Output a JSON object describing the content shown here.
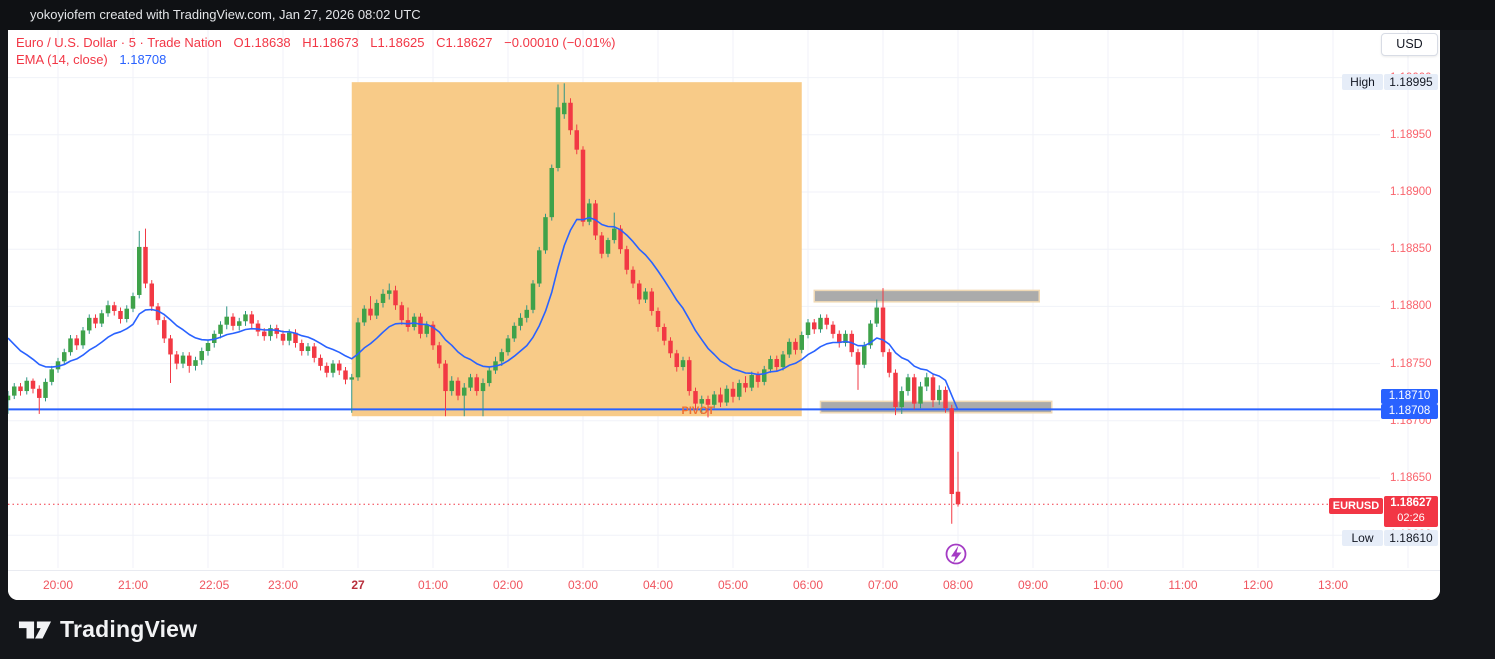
{
  "window": {
    "attribution": "yokoyiofem created with TradingView.com, Jan 27, 2026 08:02 UTC",
    "brand": "TradingView"
  },
  "legend": {
    "symbol_title": "Euro / U.S. Dollar · 5 · Trade Nation",
    "open": "O1.18638",
    "high": "H1.18673",
    "low": "L1.18625",
    "close": "C1.18627",
    "change": "−0.00010 (−0.01%)",
    "indicator_label": "EMA (14, close)",
    "indicator_value": "1.18708"
  },
  "price_scale": {
    "currency_button": "USD",
    "high_label": "High",
    "high_value": "1.18995",
    "low_label": "Low",
    "low_value": "1.18610",
    "symbol_label": "EURUSD",
    "last_price": "1.18627",
    "countdown": "02:26",
    "pivot_value": "1.18710",
    "ema_value": "1.18708",
    "ticks": [
      "1.19000",
      "1.18950",
      "1.18900",
      "1.18850",
      "1.18800",
      "1.18750",
      "1.18700",
      "1.18650",
      "1.18600"
    ]
  },
  "time_axis": {
    "labels": [
      {
        "text": "20:00",
        "time": "20:00"
      },
      {
        "text": "21:00",
        "time": "21:00"
      },
      {
        "text": "22:05",
        "time": "22:05"
      },
      {
        "text": "23:00",
        "time": "23:00"
      },
      {
        "text": "27",
        "time": "00:00",
        "day": true
      },
      {
        "text": "01:00",
        "time": "01:00"
      },
      {
        "text": "02:00",
        "time": "02:00"
      },
      {
        "text": "03:00",
        "time": "03:00"
      },
      {
        "text": "04:00",
        "time": "04:00"
      },
      {
        "text": "05:00",
        "time": "05:00"
      },
      {
        "text": "06:00",
        "time": "06:00"
      },
      {
        "text": "07:00",
        "time": "07:00"
      },
      {
        "text": "08:00",
        "time": "08:00"
      },
      {
        "text": "09:00",
        "time": "09:00"
      },
      {
        "text": "10:00",
        "time": "10:00"
      },
      {
        "text": "11:00",
        "time": "11:00"
      },
      {
        "text": "12:00",
        "time": "12:00"
      },
      {
        "text": "13:00",
        "time": "13:00"
      }
    ]
  },
  "annotations": {
    "pivot_text": "PIVOT"
  },
  "colors": {
    "up_body": "#3fa24a",
    "up_wick": "#2f9484",
    "down_body": "#f23944",
    "down_wick": "#f23944",
    "ema_line": "#2962ff",
    "pivot_line": "#2962ff",
    "last_price_line": "#f23645",
    "highlight_box": "#f8cb88",
    "zone_fill": "#ababab",
    "zone_border": "#f0d9b5",
    "grid": "#f0f2f8",
    "pivot_text": "#ee6f30",
    "event_icon": "#a43bc4"
  },
  "chart_data": {
    "type": "candlestick",
    "symbol": "EURUSD",
    "interval": "5m",
    "price_base": 1.18,
    "price_unit": 1e-05,
    "session_high": 1.18995,
    "session_low": 1.1861,
    "last_price": 1.18627,
    "pivot_level": 1.1871,
    "ema": {
      "length": 14,
      "source": "close",
      "seed_units": 780,
      "last_value": 1.18708
    },
    "highlight_box": {
      "time_start": "23:55",
      "time_end": "05:55",
      "price_top": 1.18996,
      "price_bottom": 1.18704
    },
    "zones": [
      {
        "time_start": "06:05",
        "time_end": "09:05",
        "price_top": 1.18814,
        "price_bottom": 1.18804
      },
      {
        "time_start": "06:10",
        "time_end": "09:15",
        "price_top": 1.18717,
        "price_bottom": 1.18707
      }
    ],
    "event_marker": {
      "time": "08:00",
      "type": "economic-event"
    },
    "grid_hours": [
      "20:00",
      "21:00",
      "22:00",
      "23:00",
      "00:00",
      "01:00",
      "02:00",
      "03:00",
      "04:00",
      "05:00",
      "06:00",
      "07:00",
      "08:00",
      "09:00",
      "10:00",
      "11:00",
      "12:00",
      "13:00",
      "14:00"
    ],
    "candles": [
      [
        "19:20",
        718,
        726,
        706,
        722
      ],
      [
        "19:25",
        722,
        733,
        719,
        730
      ],
      [
        "19:30",
        730,
        733,
        722,
        726
      ],
      [
        "19:35",
        726,
        738,
        723,
        735
      ],
      [
        "19:40",
        735,
        737,
        724,
        728
      ],
      [
        "19:45",
        728,
        731,
        706,
        720
      ],
      [
        "19:50",
        720,
        737,
        717,
        734
      ],
      [
        "19:55",
        734,
        748,
        731,
        745
      ],
      [
        "20:00",
        745,
        755,
        742,
        752
      ],
      [
        "20:05",
        752,
        763,
        749,
        760
      ],
      [
        "20:10",
        760,
        775,
        757,
        772
      ],
      [
        "20:15",
        772,
        775,
        762,
        766
      ],
      [
        "20:20",
        766,
        782,
        763,
        779
      ],
      [
        "20:25",
        779,
        793,
        776,
        790
      ],
      [
        "20:30",
        790,
        793,
        781,
        785
      ],
      [
        "20:35",
        785,
        797,
        782,
        794
      ],
      [
        "20:40",
        794,
        805,
        791,
        801
      ],
      [
        "20:45",
        801,
        804,
        792,
        796
      ],
      [
        "20:50",
        796,
        799,
        785,
        789
      ],
      [
        "20:55",
        789,
        801,
        786,
        798
      ],
      [
        "21:00",
        798,
        812,
        795,
        809
      ],
      [
        "21:05",
        810,
        866,
        807,
        852
      ],
      [
        "21:10",
        852,
        868,
        816,
        820
      ],
      [
        "21:15",
        820,
        823,
        796,
        800
      ],
      [
        "21:20",
        800,
        803,
        784,
        788
      ],
      [
        "21:25",
        788,
        791,
        768,
        772
      ],
      [
        "21:30",
        772,
        775,
        733,
        758
      ],
      [
        "21:35",
        758,
        761,
        745,
        750
      ],
      [
        "21:40",
        750,
        760,
        746,
        757
      ],
      [
        "21:45",
        757,
        760,
        742,
        748
      ],
      [
        "21:50",
        748,
        756,
        744,
        753
      ],
      [
        "21:55",
        753,
        764,
        749,
        761
      ],
      [
        "22:00",
        761,
        771,
        757,
        768
      ],
      [
        "22:05",
        768,
        779,
        764,
        776
      ],
      [
        "22:10",
        776,
        787,
        772,
        784
      ],
      [
        "22:15",
        784,
        800,
        780,
        791
      ],
      [
        "22:20",
        791,
        794,
        779,
        783
      ],
      [
        "22:25",
        783,
        790,
        779,
        787
      ],
      [
        "22:30",
        787,
        796,
        783,
        793
      ],
      [
        "22:35",
        793,
        796,
        781,
        785
      ],
      [
        "22:40",
        785,
        788,
        774,
        778
      ],
      [
        "22:45",
        778,
        781,
        770,
        774
      ],
      [
        "22:50",
        774,
        784,
        770,
        781
      ],
      [
        "22:55",
        781,
        784,
        772,
        776
      ],
      [
        "23:00",
        776,
        779,
        766,
        770
      ],
      [
        "23:05",
        770,
        780,
        766,
        777
      ],
      [
        "23:10",
        777,
        780,
        764,
        768
      ],
      [
        "23:15",
        768,
        771,
        757,
        761
      ],
      [
        "23:20",
        761,
        768,
        757,
        765
      ],
      [
        "23:25",
        765,
        768,
        751,
        755
      ],
      [
        "23:30",
        755,
        758,
        744,
        748
      ],
      [
        "23:35",
        748,
        751,
        738,
        742
      ],
      [
        "23:40",
        742,
        753,
        738,
        750
      ],
      [
        "23:45",
        750,
        753,
        740,
        744
      ],
      [
        "23:50",
        744,
        747,
        732,
        736
      ],
      [
        "23:55",
        736,
        741,
        707,
        738
      ],
      [
        "00:00",
        738,
        790,
        735,
        786
      ],
      [
        "00:05",
        786,
        801,
        783,
        798
      ],
      [
        "00:10",
        798,
        809,
        788,
        792
      ],
      [
        "00:15",
        792,
        806,
        789,
        803
      ],
      [
        "00:20",
        803,
        815,
        799,
        811
      ],
      [
        "00:25",
        811,
        820,
        806,
        814
      ],
      [
        "00:30",
        814,
        818,
        797,
        801
      ],
      [
        "00:35",
        801,
        804,
        784,
        788
      ],
      [
        "00:40",
        788,
        799,
        778,
        782
      ],
      [
        "00:45",
        782,
        794,
        779,
        791
      ],
      [
        "00:50",
        791,
        794,
        772,
        776
      ],
      [
        "00:55",
        776,
        787,
        773,
        784
      ],
      [
        "01:00",
        784,
        787,
        762,
        766
      ],
      [
        "01:05",
        766,
        769,
        746,
        750
      ],
      [
        "01:10",
        750,
        753,
        704,
        726
      ],
      [
        "01:15",
        726,
        739,
        722,
        735
      ],
      [
        "01:20",
        735,
        738,
        718,
        722
      ],
      [
        "01:25",
        722,
        733,
        704,
        729
      ],
      [
        "01:30",
        729,
        741,
        726,
        738
      ],
      [
        "01:35",
        738,
        741,
        722,
        726
      ],
      [
        "01:40",
        726,
        737,
        704,
        733
      ],
      [
        "01:45",
        733,
        747,
        730,
        744
      ],
      [
        "01:50",
        744,
        756,
        741,
        752
      ],
      [
        "01:55",
        752,
        763,
        748,
        760
      ],
      [
        "02:00",
        760,
        775,
        757,
        772
      ],
      [
        "02:05",
        772,
        786,
        769,
        783
      ],
      [
        "02:10",
        783,
        794,
        779,
        790
      ],
      [
        "02:15",
        790,
        801,
        786,
        797
      ],
      [
        "02:20",
        797,
        823,
        794,
        820
      ],
      [
        "02:25",
        820,
        852,
        817,
        849
      ],
      [
        "02:30",
        849,
        881,
        846,
        878
      ],
      [
        "02:35",
        878,
        924,
        875,
        921
      ],
      [
        "02:40",
        921,
        994,
        918,
        974
      ],
      [
        "02:45",
        968,
        995,
        964,
        978
      ],
      [
        "02:50",
        978,
        982,
        950,
        954
      ],
      [
        "02:55",
        954,
        959,
        933,
        937
      ],
      [
        "03:00",
        937,
        940,
        870,
        874
      ],
      [
        "03:05",
        874,
        894,
        871,
        890
      ],
      [
        "03:10",
        890,
        893,
        858,
        862
      ],
      [
        "03:15",
        862,
        865,
        842,
        846
      ],
      [
        "03:20",
        846,
        860,
        843,
        858
      ],
      [
        "03:25",
        858,
        882,
        855,
        868
      ],
      [
        "03:30",
        868,
        871,
        846,
        850
      ],
      [
        "03:35",
        850,
        853,
        828,
        832
      ],
      [
        "03:40",
        832,
        835,
        816,
        820
      ],
      [
        "03:45",
        820,
        823,
        802,
        806
      ],
      [
        "03:50",
        806,
        816,
        803,
        813
      ],
      [
        "03:55",
        813,
        816,
        792,
        796
      ],
      [
        "04:00",
        796,
        799,
        778,
        782
      ],
      [
        "04:05",
        782,
        785,
        766,
        770
      ],
      [
        "04:10",
        770,
        773,
        755,
        759
      ],
      [
        "04:15",
        759,
        762,
        743,
        747
      ],
      [
        "04:20",
        747,
        756,
        744,
        753
      ],
      [
        "04:25",
        753,
        756,
        722,
        726
      ],
      [
        "04:30",
        726,
        729,
        710,
        715
      ],
      [
        "04:35",
        715,
        722,
        706,
        719
      ],
      [
        "04:40",
        719,
        722,
        703,
        714
      ],
      [
        "04:45",
        714,
        726,
        711,
        723
      ],
      [
        "04:50",
        723,
        729,
        712,
        716
      ],
      [
        "04:55",
        716,
        731,
        713,
        728
      ],
      [
        "05:00",
        728,
        734,
        716,
        721
      ],
      [
        "05:05",
        721,
        736,
        718,
        733
      ],
      [
        "05:10",
        733,
        739,
        725,
        729
      ],
      [
        "05:15",
        729,
        743,
        726,
        740
      ],
      [
        "05:20",
        740,
        743,
        729,
        734
      ],
      [
        "05:25",
        734,
        748,
        731,
        745
      ],
      [
        "05:30",
        745,
        757,
        742,
        754
      ],
      [
        "05:35",
        754,
        757,
        743,
        747
      ],
      [
        "05:40",
        747,
        761,
        744,
        758
      ],
      [
        "05:45",
        758,
        772,
        755,
        769
      ],
      [
        "05:50",
        769,
        772,
        758,
        762
      ],
      [
        "05:55",
        762,
        778,
        759,
        775
      ],
      [
        "06:00",
        775,
        789,
        772,
        786
      ],
      [
        "06:05",
        786,
        789,
        776,
        780
      ],
      [
        "06:10",
        780,
        793,
        777,
        790
      ],
      [
        "06:15",
        790,
        793,
        780,
        784
      ],
      [
        "06:20",
        784,
        787,
        772,
        776
      ],
      [
        "06:25",
        776,
        779,
        764,
        768
      ],
      [
        "06:30",
        768,
        779,
        765,
        776
      ],
      [
        "06:35",
        776,
        779,
        756,
        760
      ],
      [
        "06:40",
        760,
        763,
        727,
        749
      ],
      [
        "06:45",
        749,
        769,
        746,
        766
      ],
      [
        "06:50",
        766,
        788,
        763,
        785
      ],
      [
        "06:55",
        785,
        806,
        782,
        799
      ],
      [
        "07:00",
        799,
        816,
        756,
        760
      ],
      [
        "07:05",
        760,
        763,
        738,
        742
      ],
      [
        "07:10",
        742,
        745,
        705,
        712
      ],
      [
        "07:15",
        712,
        730,
        706,
        726
      ],
      [
        "07:20",
        726,
        741,
        722,
        738
      ],
      [
        "07:25",
        738,
        741,
        710,
        715
      ],
      [
        "07:30",
        715,
        734,
        711,
        730
      ],
      [
        "07:35",
        730,
        742,
        726,
        738
      ],
      [
        "07:40",
        738,
        741,
        712,
        718
      ],
      [
        "07:45",
        718,
        731,
        714,
        727
      ],
      [
        "07:50",
        727,
        730,
        707,
        711
      ],
      [
        "07:55",
        711,
        714,
        610,
        636
      ],
      [
        "08:00",
        638,
        673,
        625,
        627
      ]
    ]
  }
}
